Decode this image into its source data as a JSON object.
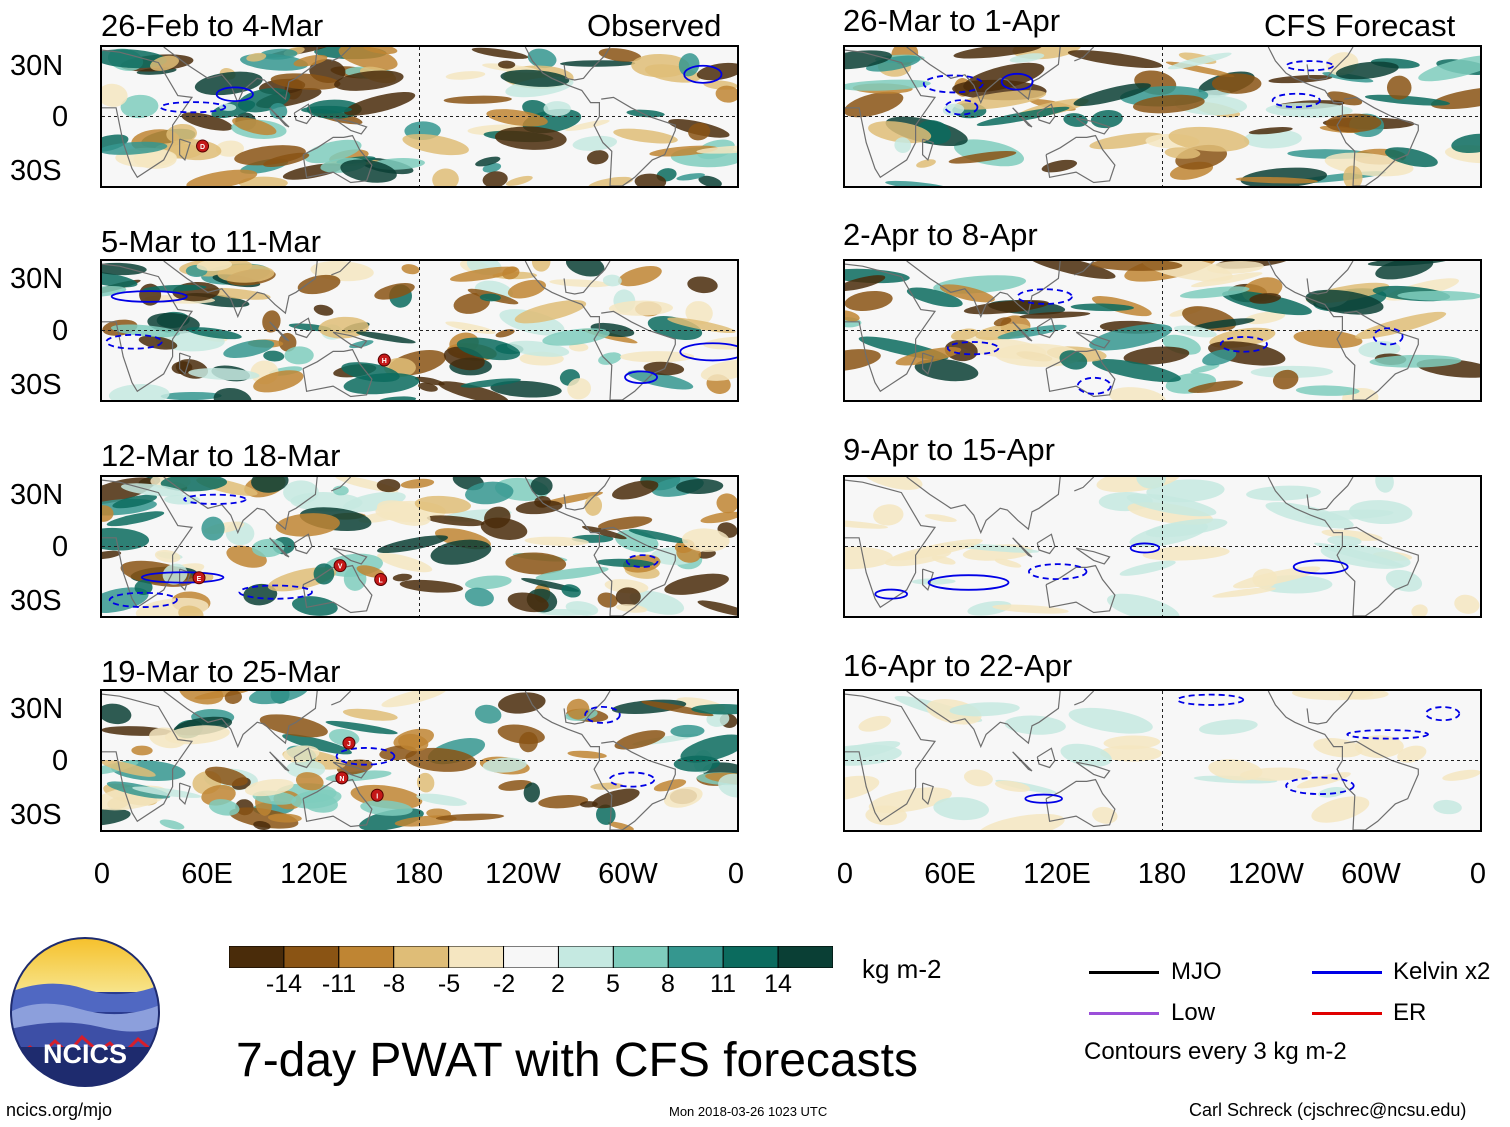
{
  "header": {
    "left_label": "Observed",
    "right_label": "CFS Forecast"
  },
  "observed_panels": [
    {
      "title": "26-Feb to 4-Mar",
      "storms": [
        "D"
      ]
    },
    {
      "title": "5-Mar to 11-Mar",
      "storms": [
        "H"
      ]
    },
    {
      "title": "12-Mar to 18-Mar",
      "storms": [
        "E",
        "V",
        "L"
      ]
    },
    {
      "title": "19-Mar to 25-Mar",
      "storms": [
        "J",
        "N",
        "I"
      ]
    }
  ],
  "forecast_panels": [
    {
      "title": "26-Mar to 1-Apr"
    },
    {
      "title": "2-Apr to 8-Apr"
    },
    {
      "title": "9-Apr to 15-Apr"
    },
    {
      "title": "16-Apr to 22-Apr"
    }
  ],
  "lat_labels": [
    "30N",
    "0",
    "30S"
  ],
  "lon_labels": [
    "0",
    "60E",
    "120E",
    "180",
    "120W",
    "60W",
    "0"
  ],
  "colorbar": {
    "unit": "kg m-2",
    "ticks": [
      "-14",
      "-11",
      "-8",
      "-5",
      "-2",
      "2",
      "5",
      "8",
      "11",
      "14"
    ],
    "colors": [
      "#4a2c0a",
      "#8a5414",
      "#bf8533",
      "#dfbd77",
      "#f5e6c1",
      "#f7f7f7",
      "#c5e9e1",
      "#7fcdbd",
      "#35978f",
      "#0b6b5e",
      "#0a3f35"
    ]
  },
  "title": "7-day PWAT with CFS forecasts",
  "legend": {
    "items": [
      {
        "label": "MJO",
        "color": "#000000"
      },
      {
        "label": "Kelvin x2",
        "color": "#0000e6"
      },
      {
        "label": "Low",
        "color": "#9b4fd9"
      },
      {
        "label": "ER",
        "color": "#e00000"
      }
    ],
    "note": "Contours every 3 kg m-2"
  },
  "logo": {
    "text": "NCICS"
  },
  "footer": {
    "left": "ncics.org/mjo",
    "center": "Mon 2018-03-26 1023 UTC",
    "right": "Carl Schreck (cjschrec@ncsu.edu)"
  }
}
